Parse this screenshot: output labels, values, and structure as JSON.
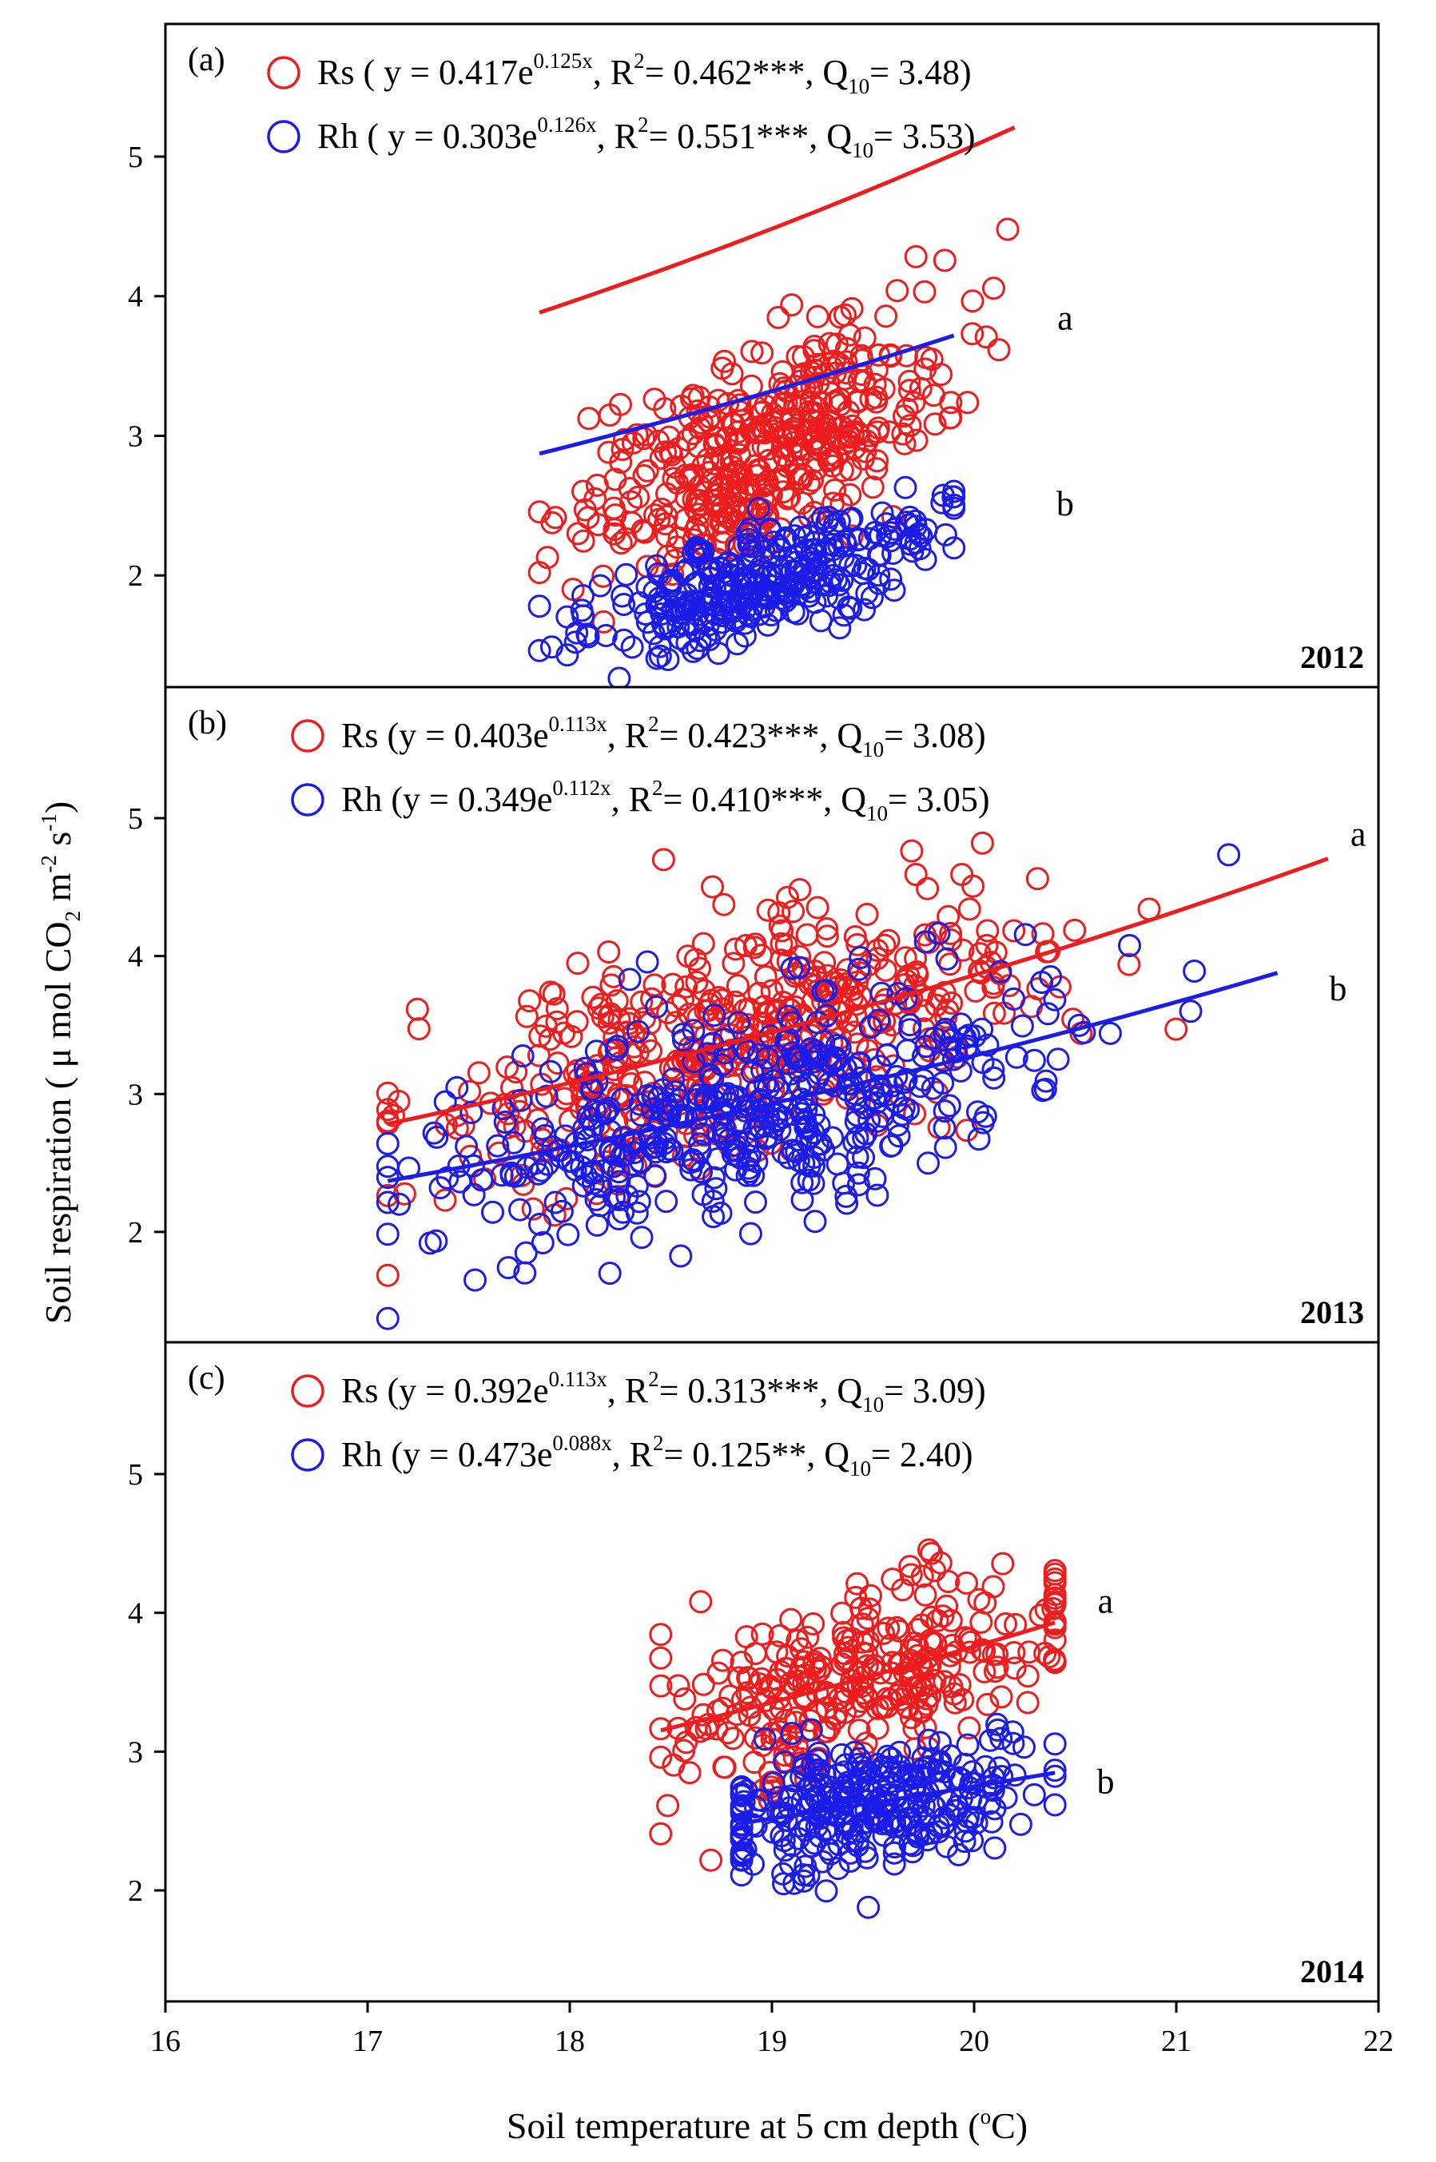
{
  "colors": {
    "rs": "#ee1c1c",
    "rh": "#1c1ce8",
    "axis": "#000000"
  },
  "x_axis": {
    "label_main": "Soil temperature at 5 cm depth (",
    "label_sup": "o",
    "label_tail": "C)",
    "ticks": [
      "16",
      "17",
      "18",
      "19",
      "20",
      "21",
      "22"
    ]
  },
  "y_axis": {
    "label_main": "Soil respiration ( μ mol CO",
    "label_sub": "2",
    "label_m": " m",
    "label_sup1": "-2",
    "label_s": " s",
    "label_sup2": "-1",
    "label_tail": ")",
    "ticks": [
      "2",
      "3",
      "4",
      "5"
    ]
  },
  "chart_data": [
    {
      "type": "scatter",
      "panel": "(a)",
      "year": "2012",
      "xlim": [
        16,
        22
      ],
      "ylim": [
        1.2,
        5.95
      ],
      "xlabel": "Soil temperature at 5 cm depth (oC)",
      "ylabel": "Soil respiration ( μ mol CO2 m-2 s-1)",
      "series": [
        {
          "name": "Rs",
          "legend": {
            "pre": "Rs ( y = 0.417e",
            "exp": "0.125x",
            "mid": ", R",
            "r2sup": "2",
            "r2val": "= 0.462***, Q",
            "qsub": "10",
            "tail": "= 3.48)"
          },
          "a": 0.417,
          "b": 0.125,
          "r2": "0.462***",
          "q10": "3.48",
          "fit_x": [
            17.85,
            20.2
          ],
          "x_range": [
            17.85,
            20.2
          ],
          "cloud": {
            "center_x": 18.95,
            "center_y": 2.9,
            "spread_x": 0.45,
            "spread_y": 0.35,
            "count": 420
          },
          "group_label": "a",
          "group_label_pos": [
            20.45,
            3.76
          ]
        },
        {
          "name": "Rh",
          "legend": {
            "pre": "Rh ( y = 0.303e",
            "exp": "0.126x",
            "mid": ", R",
            "r2sup": "2",
            "r2val": "= 0.551***, Q",
            "qsub": "10",
            "tail": "= 3.53)"
          },
          "a": 0.303,
          "b": 0.126,
          "r2": "0.551***",
          "q10": "3.53",
          "fit_x": [
            17.85,
            19.9
          ],
          "x_range": [
            17.85,
            19.9
          ],
          "cloud": {
            "center_x": 18.95,
            "center_y": 1.95,
            "spread_x": 0.45,
            "spread_y": 0.18,
            "count": 320
          },
          "group_label": "b",
          "group_label_pos": [
            20.45,
            2.43
          ]
        }
      ]
    },
    {
      "type": "scatter",
      "panel": "(b)",
      "year": "2013",
      "xlim": [
        16,
        22
      ],
      "ylim": [
        1.2,
        5.95
      ],
      "series": [
        {
          "name": "Rs",
          "legend": {
            "pre": "Rs (y = 0.403e",
            "exp": "0.113x",
            "mid": ", R",
            "r2sup": "2",
            "r2val": "= 0.423***, Q",
            "qsub": "10",
            "tail": "= 3.08)"
          },
          "a": 0.403,
          "b": 0.113,
          "r2": "0.423***",
          "q10": "3.08",
          "fit_x": [
            17.1,
            21.75
          ],
          "x_range": [
            17.1,
            21.75
          ],
          "cloud": {
            "center_x": 18.8,
            "center_y": 3.35,
            "spread_x": 0.75,
            "spread_y": 0.4,
            "count": 460
          },
          "group_label": "a",
          "group_label_pos": [
            21.9,
            4.8
          ]
        },
        {
          "name": "Rh",
          "legend": {
            "pre": "Rh (y = 0.349e",
            "exp": "0.112x",
            "mid": ", R",
            "r2sup": "2",
            "r2val": "= 0.410***, Q",
            "qsub": "10",
            "tail": "= 3.05)"
          },
          "a": 0.349,
          "b": 0.112,
          "r2": "0.410***",
          "q10": "3.05",
          "fit_x": [
            17.1,
            21.5
          ],
          "x_range": [
            17.1,
            21.5
          ],
          "cloud": {
            "center_x": 18.8,
            "center_y": 2.85,
            "spread_x": 0.75,
            "spread_y": 0.35,
            "count": 460
          },
          "group_label": "b",
          "group_label_pos": [
            21.8,
            3.68
          ]
        }
      ]
    },
    {
      "type": "scatter",
      "panel": "(c)",
      "year": "2014",
      "xlim": [
        16,
        22
      ],
      "ylim": [
        1.2,
        5.95
      ],
      "series": [
        {
          "name": "Rs",
          "legend": {
            "pre": "Rs (y = 0.392e",
            "exp": "0.113x",
            "mid": ", R",
            "r2sup": "2",
            "r2val": "= 0.313***, Q",
            "qsub": "10",
            "tail": "= 3.09)"
          },
          "a": 0.392,
          "b": 0.113,
          "r2": "0.313***",
          "q10": "3.09",
          "fit_x": [
            18.45,
            20.4
          ],
          "x_range": [
            18.45,
            20.4
          ],
          "cloud": {
            "center_x": 19.45,
            "center_y": 3.55,
            "spread_x": 0.5,
            "spread_y": 0.3,
            "count": 300
          },
          "group_label": "a",
          "group_label_pos": [
            20.65,
            4.0
          ]
        },
        {
          "name": "Rh",
          "legend": {
            "pre": "Rh (y = 0.473e",
            "exp": "0.088x",
            "mid": ", R",
            "r2sup": "2",
            "r2val": "= 0.125**, Q",
            "qsub": "10",
            "tail": "= 2.40)"
          },
          "a": 0.473,
          "b": 0.088,
          "r2": "0.125**",
          "q10": "2.40",
          "fit_x": [
            18.85,
            20.4
          ],
          "x_range": [
            18.85,
            20.4
          ],
          "cloud": {
            "center_x": 19.5,
            "center_y": 2.6,
            "spread_x": 0.45,
            "spread_y": 0.22,
            "count": 300
          },
          "group_label": "b",
          "group_label_pos": [
            20.65,
            2.7
          ]
        }
      ]
    }
  ]
}
